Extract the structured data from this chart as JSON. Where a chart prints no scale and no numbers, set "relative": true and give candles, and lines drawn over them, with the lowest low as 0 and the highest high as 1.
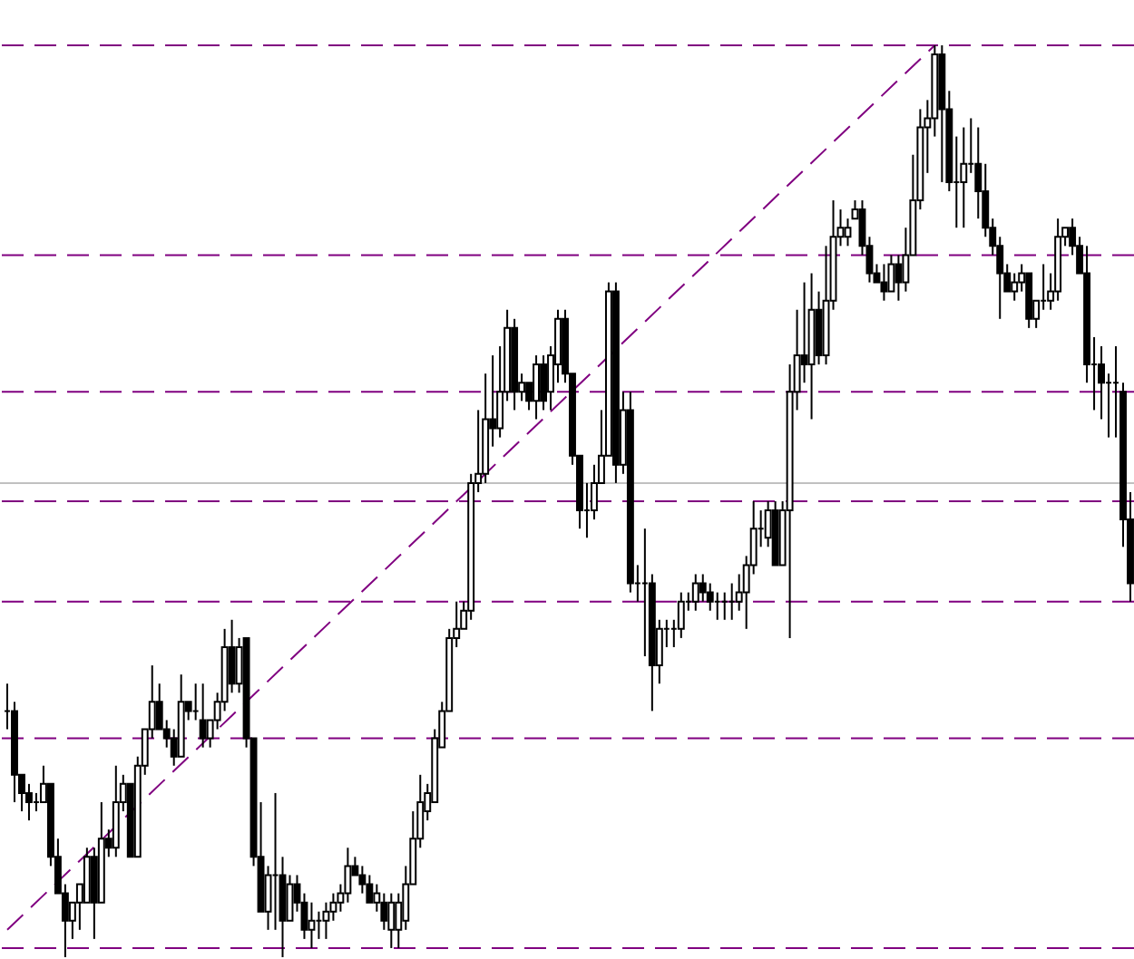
{
  "chart_data": {
    "type": "candlestick",
    "relative": true,
    "categories": [
      null,
      null,
      null,
      null,
      null,
      null,
      null,
      null,
      null,
      null,
      null,
      null,
      null,
      null,
      null,
      null,
      null,
      null,
      null,
      null,
      null,
      null,
      null,
      null,
      null,
      null,
      null,
      null,
      null,
      null,
      null,
      null,
      null,
      null,
      null,
      null,
      null,
      null,
      null,
      null,
      null,
      null,
      null,
      null,
      null,
      null,
      null,
      null,
      null,
      null,
      null,
      null,
      null,
      null,
      null,
      null,
      null,
      null,
      null,
      null,
      null,
      null,
      null,
      null,
      null,
      null,
      null,
      null,
      null,
      null,
      null,
      null,
      null,
      null,
      null,
      null,
      null,
      null,
      null,
      null,
      null,
      null,
      null,
      null,
      null,
      null,
      null,
      null,
      null,
      null,
      null,
      null,
      null,
      null,
      null,
      null,
      null,
      null,
      null,
      null,
      null,
      null,
      null,
      null,
      null,
      null,
      null,
      null,
      null,
      null,
      null,
      null,
      null,
      null,
      null,
      null,
      null,
      null,
      null,
      null,
      null,
      null,
      null,
      null,
      null,
      null,
      null,
      null,
      null,
      null,
      null,
      null,
      null,
      null,
      null,
      null,
      null,
      null,
      null,
      null,
      null,
      null,
      null,
      null,
      null,
      null,
      null,
      null,
      null,
      null,
      null,
      null,
      null,
      null,
      null,
      null
    ],
    "color": "#000000",
    "ohlc": [
      [
        0.27,
        0.3,
        0.25,
        0.27
      ],
      [
        0.27,
        0.28,
        0.17,
        0.2
      ],
      [
        0.2,
        0.2,
        0.16,
        0.18
      ],
      [
        0.18,
        0.19,
        0.15,
        0.17
      ],
      [
        0.17,
        0.18,
        0.16,
        0.17
      ],
      [
        0.17,
        0.21,
        0.17,
        0.19
      ],
      [
        0.19,
        0.19,
        0.1,
        0.11
      ],
      [
        0.11,
        0.13,
        0.07,
        0.07
      ],
      [
        0.07,
        0.08,
        0,
        0.04
      ],
      [
        0.04,
        0.06,
        0.02,
        0.06
      ],
      [
        0.06,
        0.08,
        0.03,
        0.08
      ],
      [
        0.06,
        0.12,
        0.06,
        0.11
      ],
      [
        0.11,
        0.12,
        0.02,
        0.06
      ],
      [
        0.06,
        0.17,
        0.06,
        0.13
      ],
      [
        0.13,
        0.14,
        0.11,
        0.12
      ],
      [
        0.12,
        0.21,
        0.11,
        0.17
      ],
      [
        0.17,
        0.2,
        0.16,
        0.19
      ],
      [
        0.19,
        0.19,
        0.11,
        0.11
      ],
      [
        0.11,
        0.22,
        0.11,
        0.21
      ],
      [
        0.21,
        0.25,
        0.2,
        0.25
      ],
      [
        0.25,
        0.32,
        0.24,
        0.28
      ],
      [
        0.28,
        0.3,
        0.25,
        0.25
      ],
      [
        0.25,
        0.26,
        0.23,
        0.24
      ],
      [
        0.24,
        0.25,
        0.21,
        0.22
      ],
      [
        0.22,
        0.31,
        0.22,
        0.28
      ],
      [
        0.28,
        0.28,
        0.26,
        0.27
      ],
      [
        0.27,
        0.3,
        0.26,
        0.27
      ],
      [
        0.26,
        0.3,
        0.23,
        0.24
      ],
      [
        0.24,
        0.26,
        0.23,
        0.26
      ],
      [
        0.26,
        0.29,
        0.25,
        0.28
      ],
      [
        0.28,
        0.36,
        0.27,
        0.34
      ],
      [
        0.34,
        0.37,
        0.29,
        0.3
      ],
      [
        0.3,
        0.35,
        0.29,
        0.34
      ],
      [
        0.35,
        0.35,
        0.23,
        0.24
      ],
      [
        0.24,
        0.24,
        0.1,
        0.11
      ],
      [
        0.11,
        0.17,
        0.05,
        0.05
      ],
      [
        0.05,
        0.1,
        0.03,
        0.09
      ],
      [
        0.09,
        0.18,
        0.03,
        0.09
      ],
      [
        0.09,
        0.11,
        0.0,
        0.04
      ],
      [
        0.04,
        0.09,
        0.04,
        0.08
      ],
      [
        0.08,
        0.09,
        0.05,
        0.06
      ],
      [
        0.06,
        0.07,
        0.02,
        0.03
      ],
      [
        0.03,
        0.06,
        0.01,
        0.04
      ],
      [
        0.04,
        0.05,
        0.02,
        0.04
      ],
      [
        0.04,
        0.06,
        0.02,
        0.05
      ],
      [
        0.05,
        0.07,
        0.04,
        0.06
      ],
      [
        0.06,
        0.08,
        0.05,
        0.07
      ],
      [
        0.07,
        0.12,
        0.06,
        0.1
      ],
      [
        0.1,
        0.11,
        0.09,
        0.09
      ],
      [
        0.09,
        0.1,
        0.07,
        0.08
      ],
      [
        0.08,
        0.09,
        0.06,
        0.06
      ],
      [
        0.06,
        0.08,
        0.05,
        0.07
      ],
      [
        0.06,
        0.07,
        0.03,
        0.04
      ],
      [
        0.03,
        0.07,
        0.01,
        0.06
      ],
      [
        0.03,
        0.07,
        0.01,
        0.06
      ],
      [
        0.04,
        0.1,
        0.03,
        0.08
      ],
      [
        0.08,
        0.16,
        0.08,
        0.13
      ],
      [
        0.13,
        0.2,
        0.12,
        0.17
      ],
      [
        0.16,
        0.19,
        0.15,
        0.18
      ],
      [
        0.17,
        0.25,
        0.17,
        0.24
      ],
      [
        0.23,
        0.28,
        0.23,
        0.27
      ],
      [
        0.27,
        0.36,
        0.27,
        0.35
      ],
      [
        0.35,
        0.39,
        0.34,
        0.36
      ],
      [
        0.36,
        0.39,
        0.36,
        0.38
      ],
      [
        0.38,
        0.53,
        0.37,
        0.52
      ],
      [
        0.52,
        0.6,
        0.51,
        0.53
      ],
      [
        0.53,
        0.64,
        0.52,
        0.59
      ],
      [
        0.59,
        0.66,
        0.56,
        0.58
      ],
      [
        0.58,
        0.67,
        0.57,
        0.62
      ],
      [
        0.62,
        0.71,
        0.61,
        0.69
      ],
      [
        0.69,
        0.7,
        0.6,
        0.62
      ],
      [
        0.62,
        0.64,
        0.61,
        0.63
      ],
      [
        0.63,
        0.63,
        0.6,
        0.61
      ],
      [
        0.61,
        0.66,
        0.59,
        0.65
      ],
      [
        0.65,
        0.66,
        0.6,
        0.61
      ],
      [
        0.62,
        0.67,
        0.6,
        0.66
      ],
      [
        0.65,
        0.71,
        0.63,
        0.7
      ],
      [
        0.7,
        0.71,
        0.63,
        0.64
      ],
      [
        0.64,
        0.64,
        0.54,
        0.55
      ],
      [
        0.55,
        0.55,
        0.47,
        0.49
      ],
      [
        0.49,
        0.52,
        0.46,
        0.49
      ],
      [
        0.49,
        0.54,
        0.48,
        0.52
      ],
      [
        0.52,
        0.6,
        0.52,
        0.55
      ],
      [
        0.55,
        0.74,
        0.55,
        0.73
      ],
      [
        0.73,
        0.74,
        0.52,
        0.54
      ],
      [
        0.54,
        0.62,
        0.53,
        0.6
      ],
      [
        0.6,
        0.62,
        0.4,
        0.41
      ],
      [
        0.41,
        0.43,
        0.39,
        0.41
      ],
      [
        0.41,
        0.47,
        0.33,
        0.41
      ],
      [
        0.41,
        0.42,
        0.27,
        0.32
      ],
      [
        0.32,
        0.37,
        0.3,
        0.36
      ],
      [
        0.36,
        0.37,
        0.34,
        0.36
      ],
      [
        0.36,
        0.37,
        0.34,
        0.36
      ],
      [
        0.36,
        0.4,
        0.35,
        0.39
      ],
      [
        0.39,
        0.4,
        0.38,
        0.39
      ],
      [
        0.39,
        0.42,
        0.38,
        0.41
      ],
      [
        0.41,
        0.42,
        0.39,
        0.4
      ],
      [
        0.4,
        0.41,
        0.38,
        0.39
      ],
      [
        0.39,
        0.4,
        0.37,
        0.39
      ],
      [
        0.39,
        0.4,
        0.37,
        0.39
      ],
      [
        0.39,
        0.41,
        0.37,
        0.39
      ],
      [
        0.39,
        0.42,
        0.38,
        0.4
      ],
      [
        0.4,
        0.44,
        0.36,
        0.43
      ],
      [
        0.43,
        0.5,
        0.42,
        0.47
      ],
      [
        0.47,
        0.49,
        0.45,
        0.47
      ],
      [
        0.46,
        0.5,
        0.45,
        0.49
      ],
      [
        0.49,
        0.5,
        0.43,
        0.43
      ],
      [
        0.43,
        0.5,
        0.43,
        0.49
      ],
      [
        0.49,
        0.65,
        0.35,
        0.62
      ],
      [
        0.62,
        0.71,
        0.6,
        0.66
      ],
      [
        0.66,
        0.74,
        0.63,
        0.65
      ],
      [
        0.65,
        0.75,
        0.59,
        0.71
      ],
      [
        0.71,
        0.73,
        0.65,
        0.66
      ],
      [
        0.66,
        0.78,
        0.65,
        0.72
      ],
      [
        0.72,
        0.83,
        0.71,
        0.79
      ],
      [
        0.79,
        0.82,
        0.78,
        0.8
      ],
      [
        0.79,
        0.81,
        0.78,
        0.8
      ],
      [
        0.81,
        0.83,
        0.81,
        0.82
      ],
      [
        0.82,
        0.83,
        0.77,
        0.78
      ],
      [
        0.78,
        0.79,
        0.74,
        0.75
      ],
      [
        0.75,
        0.76,
        0.74,
        0.74
      ],
      [
        0.74,
        0.76,
        0.72,
        0.73
      ],
      [
        0.73,
        0.77,
        0.73,
        0.76
      ],
      [
        0.76,
        0.77,
        0.72,
        0.74
      ],
      [
        0.74,
        0.8,
        0.73,
        0.77
      ],
      [
        0.77,
        0.88,
        0.77,
        0.83
      ],
      [
        0.83,
        0.93,
        0.82,
        0.91
      ],
      [
        0.91,
        0.94,
        0.86,
        0.92
      ],
      [
        0.92,
        1.0,
        0.9,
        0.99
      ],
      [
        0.99,
        1.0,
        0.85,
        0.93
      ],
      [
        0.93,
        0.95,
        0.84,
        0.85
      ],
      [
        0.85,
        0.9,
        0.8,
        0.85
      ],
      [
        0.85,
        0.91,
        0.8,
        0.87
      ],
      [
        0.87,
        0.92,
        0.86,
        0.87
      ],
      [
        0.87,
        0.91,
        0.81,
        0.84
      ],
      [
        0.84,
        0.87,
        0.79,
        0.8
      ],
      [
        0.8,
        0.81,
        0.77,
        0.78
      ],
      [
        0.78,
        0.79,
        0.7,
        0.75
      ],
      [
        0.75,
        0.76,
        0.73,
        0.73
      ],
      [
        0.73,
        0.75,
        0.72,
        0.74
      ],
      [
        0.74,
        0.76,
        0.73,
        0.75
      ],
      [
        0.75,
        0.75,
        0.69,
        0.7
      ],
      [
        0.7,
        0.72,
        0.69,
        0.72
      ],
      [
        0.72,
        0.76,
        0.71,
        0.72
      ],
      [
        0.72,
        0.75,
        0.71,
        0.73
      ],
      [
        0.73,
        0.81,
        0.72,
        0.79
      ],
      [
        0.79,
        0.8,
        0.78,
        0.8
      ],
      [
        0.8,
        0.81,
        0.77,
        0.78
      ],
      [
        0.78,
        0.79,
        0.75,
        0.75
      ],
      [
        0.75,
        0.78,
        0.63,
        0.65
      ],
      [
        0.65,
        0.68,
        0.6,
        0.65
      ],
      [
        0.65,
        0.67,
        0.59,
        0.63
      ],
      [
        0.63,
        0.64,
        0.57,
        0.63
      ],
      [
        0.63,
        0.67,
        0.57,
        0.63
      ],
      [
        0.62,
        0.63,
        0.45,
        0.48
      ],
      [
        0.48,
        0.51,
        0.39,
        0.41
      ]
    ],
    "series": [
      {
        "type": "line",
        "color": "#800080",
        "line_style": "dashed",
        "values": [
          0.03,
          null,
          null,
          null,
          null,
          null,
          null,
          null,
          null,
          null,
          null,
          null,
          null,
          null,
          null,
          null,
          null,
          null,
          null,
          null,
          null,
          null,
          null,
          null,
          null,
          null,
          null,
          null,
          null,
          null,
          null,
          null,
          null,
          null,
          null,
          null,
          null,
          null,
          null,
          null,
          null,
          null,
          null,
          null,
          null,
          null,
          null,
          null,
          null,
          null,
          null,
          null,
          null,
          null,
          null,
          null,
          null,
          null,
          null,
          null,
          null,
          null,
          null,
          null,
          null,
          null,
          null,
          null,
          null,
          null,
          null,
          null,
          null,
          null,
          null,
          null,
          null,
          null,
          null,
          null,
          null,
          null,
          null,
          null,
          null,
          null,
          null,
          null,
          null,
          null,
          null,
          null,
          null,
          null,
          null,
          null,
          null,
          null,
          null,
          null,
          null,
          null,
          null,
          null,
          null,
          null,
          null,
          null,
          null,
          null,
          null,
          null,
          null,
          null,
          null,
          null,
          null,
          null,
          null,
          null,
          null,
          null,
          null,
          null,
          null,
          null,
          null,
          null,
          1.0,
          null,
          null,
          null,
          null,
          null,
          null,
          null,
          null,
          null,
          null,
          null,
          null,
          null,
          null,
          null,
          null,
          null,
          null,
          null,
          null,
          null,
          null,
          null,
          null,
          null,
          null,
          null
        ]
      }
    ],
    "ref_lines": [
      {
        "axis": "y",
        "value": 0.01,
        "color": "#800080",
        "line_style": "dashed"
      },
      {
        "axis": "y",
        "value": 0.24,
        "color": "#800080",
        "line_style": "dashed"
      },
      {
        "axis": "y",
        "value": 0.39,
        "color": "#800080",
        "line_style": "dashed"
      },
      {
        "axis": "y",
        "value": 0.5,
        "color": "#800080",
        "line_style": "dashed"
      },
      {
        "axis": "y",
        "value": 0.62,
        "color": "#800080",
        "line_style": "dashed"
      },
      {
        "axis": "y",
        "value": 0.77,
        "color": "#800080",
        "line_style": "dashed"
      },
      {
        "axis": "y",
        "value": 1.0,
        "color": "#800080",
        "line_style": "dashed"
      },
      {
        "axis": "y",
        "value": 0.52,
        "color": "#c0c0c0",
        "line_style": "solid"
      }
    ]
  }
}
